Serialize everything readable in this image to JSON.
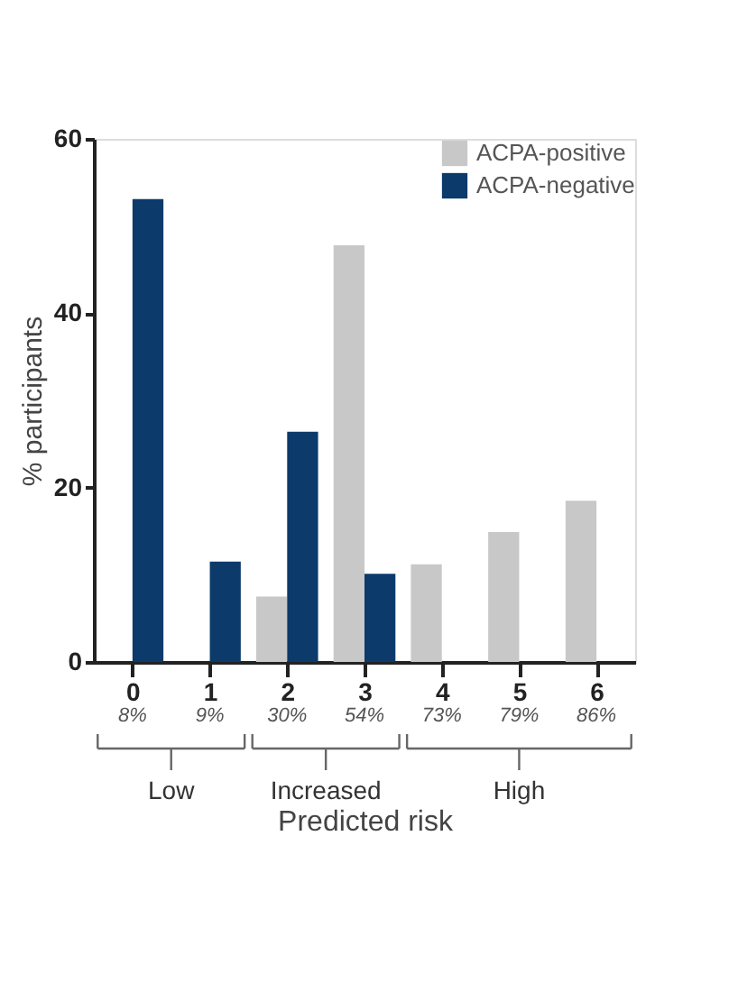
{
  "chart_data": {
    "type": "bar",
    "xlabel": "Predicted risk",
    "ylabel": "% participants",
    "categories": [
      "0",
      "1",
      "2",
      "3",
      "4",
      "5",
      "6"
    ],
    "series": [
      {
        "name": "ACPA-positive",
        "color": "#c8c8c8",
        "values": [
          null,
          null,
          7.5,
          47.8,
          11.2,
          14.9,
          18.5
        ]
      },
      {
        "name": "ACPA-negative",
        "color": "#0b3a6b",
        "values": [
          53.1,
          11.5,
          26.4,
          10.1,
          null,
          null,
          null
        ]
      }
    ],
    "ylim": [
      0,
      60
    ],
    "yticks": [
      0,
      20,
      40,
      60
    ],
    "grid": false,
    "legend": "top right",
    "annotations": [
      "8%",
      "9%",
      "30%",
      "54%",
      "73%",
      "79%",
      "86%",
      "Low",
      "Increased",
      "High"
    ]
  }
}
